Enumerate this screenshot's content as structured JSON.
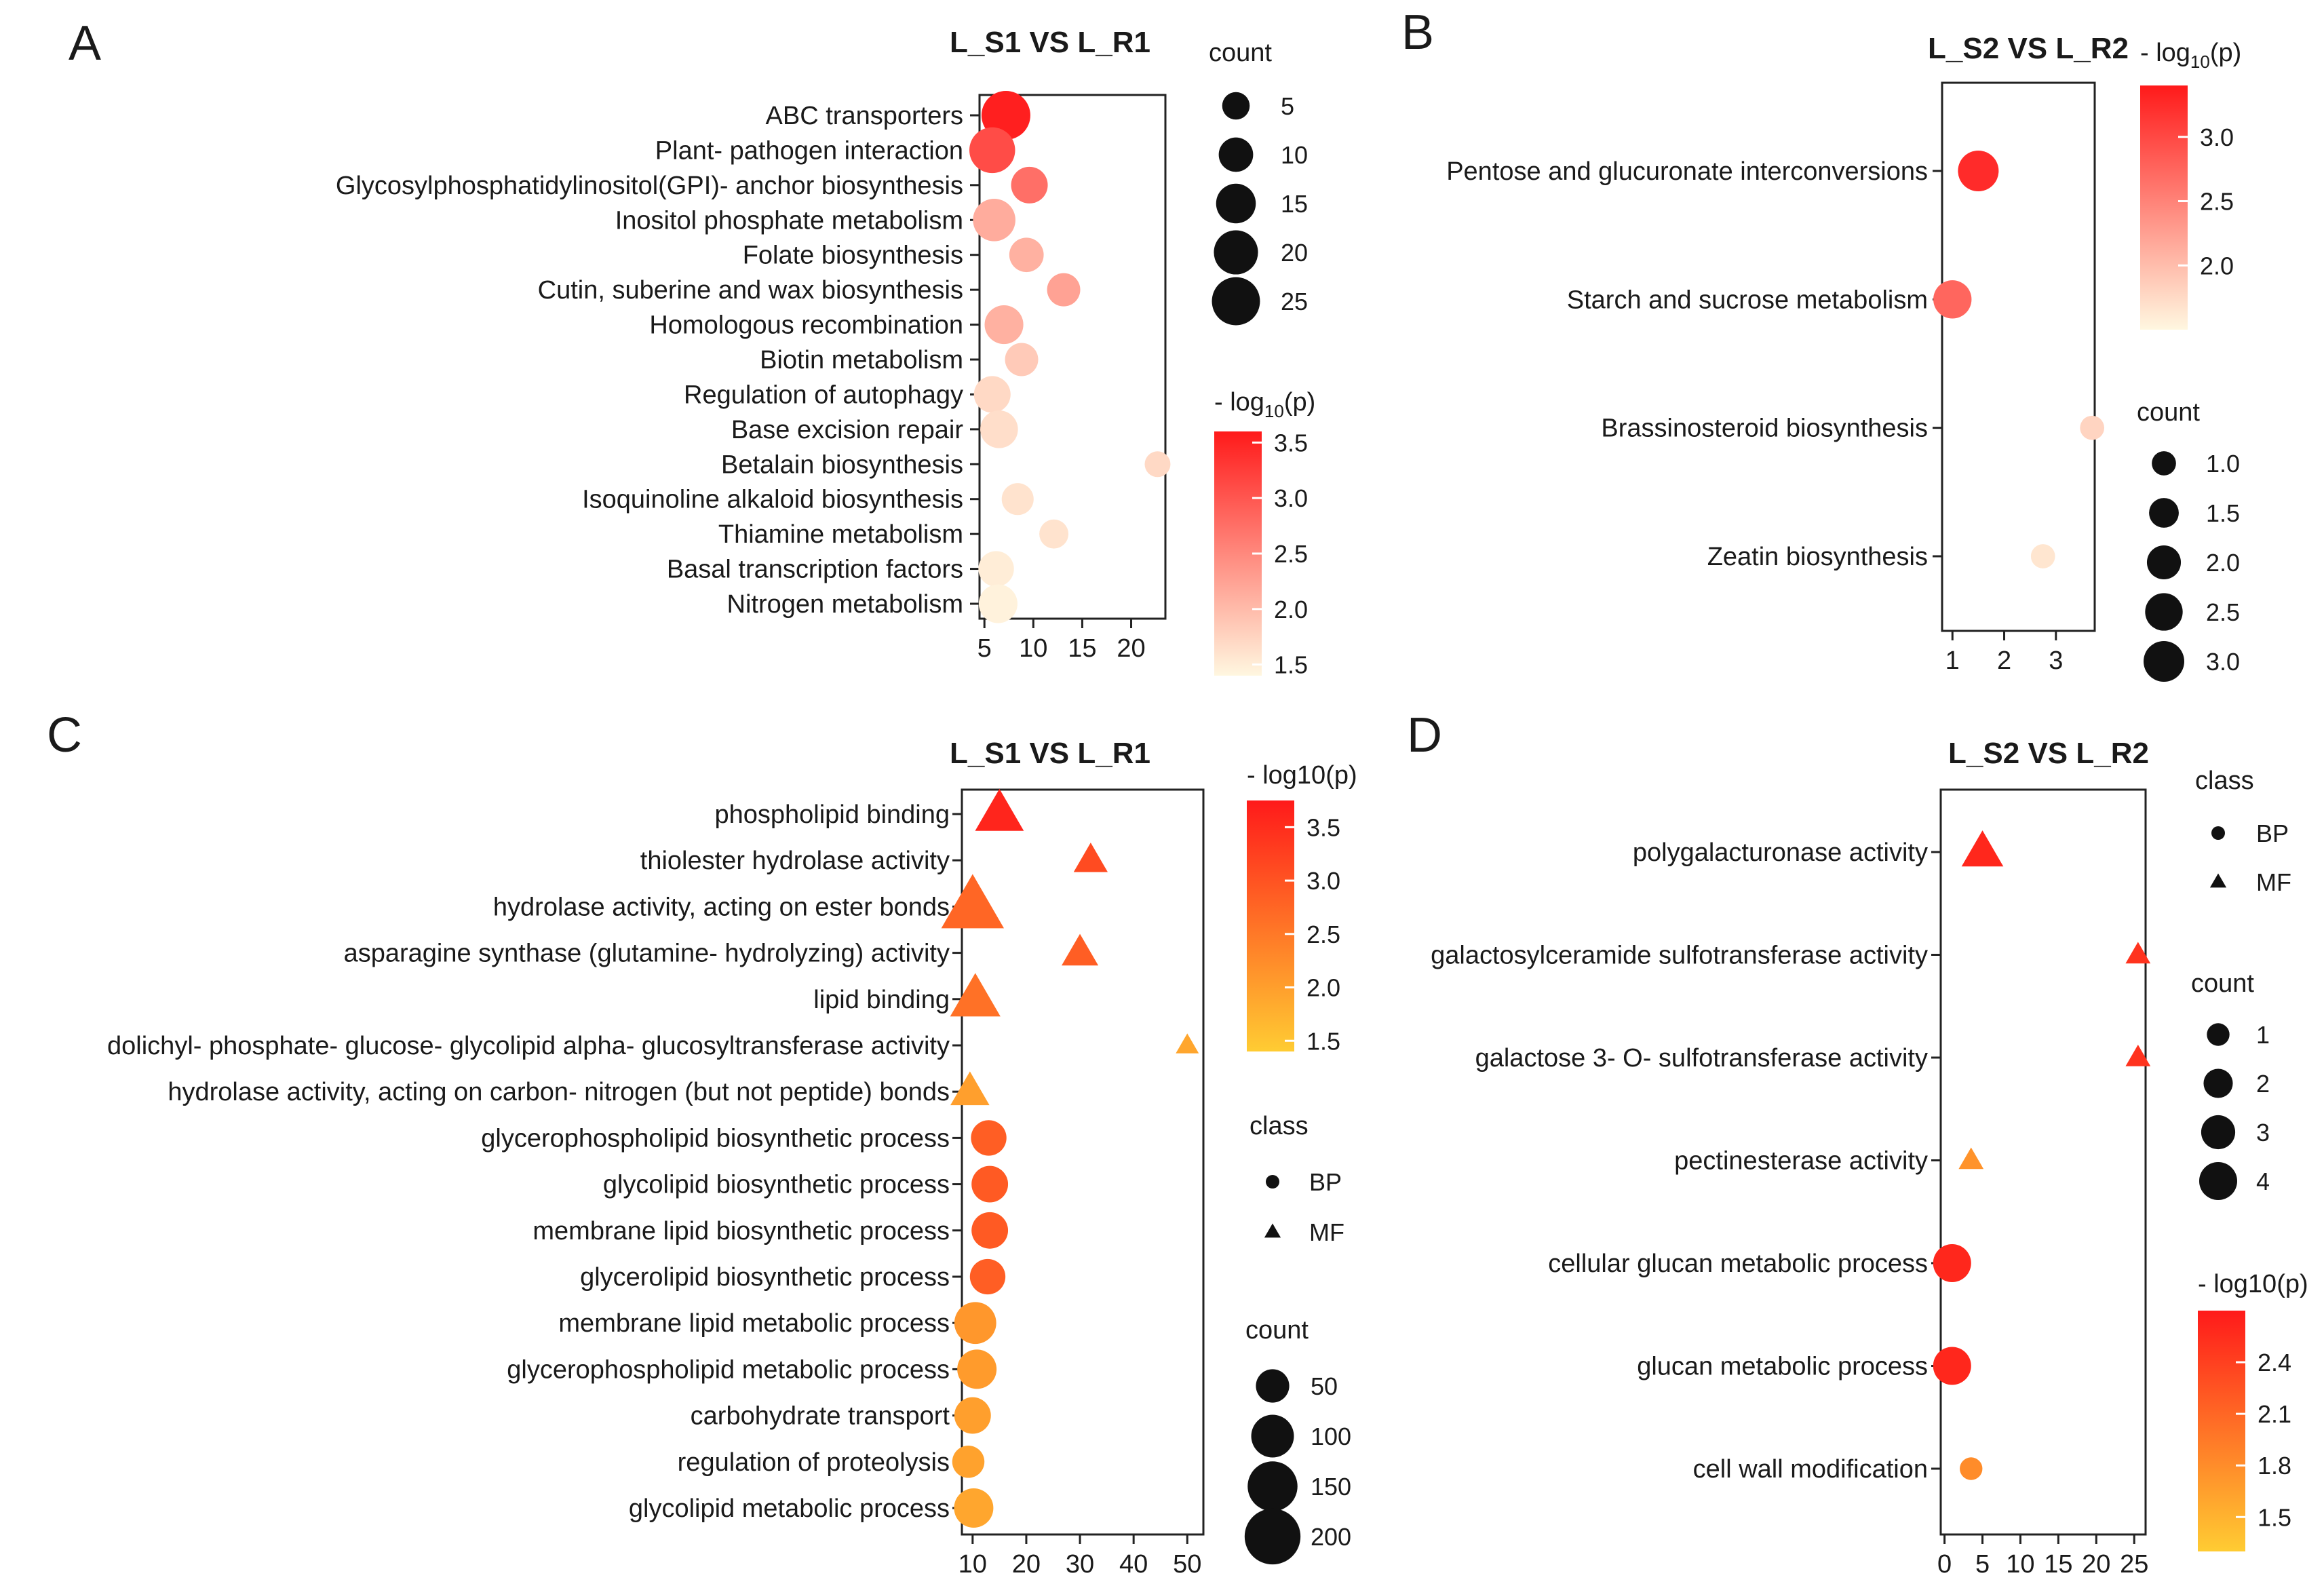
{
  "chart_data": [
    {
      "panel": "A",
      "type": "scatter",
      "title": "L_S1 VS L_R1",
      "xlabel": "",
      "ylabel": "",
      "xlim": [
        4.5,
        23.5
      ],
      "xticks": [
        5,
        10,
        15,
        20
      ],
      "categories": [
        "ABC transporters",
        "Plant- pathogen interaction",
        "Glycosylphosphatidylinositol(GPI)- anchor biosynthesis",
        "Inositol phosphate metabolism",
        "Folate biosynthesis",
        "Cutin, suberine and wax biosynthesis",
        "Homologous recombination",
        "Biotin metabolism",
        "Regulation of autophagy",
        "Base excision repair",
        "Betalain biosynthesis",
        "Isoquinoline alkaloid biosynthesis",
        "Thiamine metabolism",
        "Basal transcription factors",
        "Nitrogen metabolism"
      ],
      "x": [
        7.2,
        5.8,
        9.6,
        6.0,
        9.3,
        13.1,
        7.0,
        8.8,
        5.8,
        6.5,
        22.7,
        8.4,
        12.1,
        6.2,
        6.4
      ],
      "count": [
        26,
        22,
        12,
        18,
        10,
        9,
        14,
        9,
        12,
        13,
        4,
        8,
        6,
        11,
        14
      ],
      "neglog10p": [
        3.55,
        3.1,
        2.75,
        2.15,
        2.1,
        2.25,
        2.1,
        1.85,
        1.7,
        1.65,
        1.7,
        1.6,
        1.6,
        1.5,
        1.45
      ],
      "marker": "circle",
      "color_legend": {
        "title_prefix": "- log",
        "title_sub": "10",
        "title_suffix": "(p)",
        "range": [
          1.4,
          3.6
        ],
        "ticks": [
          "3.5",
          "3.0",
          "2.5",
          "2.0",
          "1.5"
        ],
        "low": "#fff7e0",
        "high": "#ff1a1a"
      },
      "size_legend": {
        "title": "count",
        "values": [
          5,
          10,
          15,
          20,
          25
        ]
      },
      "legend_position": "right"
    },
    {
      "panel": "B",
      "type": "scatter",
      "title": "L_S2 VS L_R2",
      "xlim": [
        0.8,
        3.75
      ],
      "xticks": [
        1,
        2,
        3
      ],
      "categories": [
        "Pentose and glucuronate interconversions",
        "Starch and sucrose metabolism",
        "Brassinosteroid biosynthesis",
        "Zeatin biosynthesis"
      ],
      "x": [
        1.5,
        1.0,
        3.7,
        2.75
      ],
      "count": [
        3,
        2.6,
        1,
        1
      ],
      "neglog10p": [
        3.25,
        2.75,
        1.8,
        1.65
      ],
      "marker": "circle",
      "color_legend": {
        "title_prefix": "- log",
        "title_sub": "10",
        "title_suffix": "(p)",
        "range": [
          1.5,
          3.4
        ],
        "ticks": [
          "3.0",
          "2.5",
          "2.0"
        ],
        "low": "#fff7e0",
        "high": "#ff1a1a"
      },
      "size_legend": {
        "title": "count",
        "values": [
          1.0,
          1.5,
          2.0,
          2.5,
          3.0
        ],
        "labels": [
          "1.0",
          "1.5",
          "2.0",
          "2.5",
          "3.0"
        ]
      },
      "legend_position": "right"
    },
    {
      "panel": "C",
      "type": "scatter",
      "title": "L_S1 VS L_R1",
      "xlim": [
        8,
        53
      ],
      "xticks": [
        10,
        20,
        30,
        40,
        50
      ],
      "categories": [
        "phospholipid binding",
        "thiolester hydrolase activity",
        "hydrolase activity, acting on ester bonds",
        "asparagine synthase (glutamine- hydrolyzing) activity",
        "lipid binding",
        "dolichyl- phosphate- glucose- glycolipid alpha- glucosyltransferase activity",
        "hydrolase activity, acting on carbon- nitrogen (but not peptide) bonds",
        "glycerophospholipid biosynthetic process",
        "glycolipid biosynthetic process",
        "membrane lipid biosynthetic process",
        "glycerolipid biosynthetic process",
        "membrane lipid metabolic process",
        "glycerophospholipid metabolic process",
        "carbohydrate transport",
        "regulation of proteolysis",
        "glycolipid metabolic process"
      ],
      "x": [
        15,
        32,
        10,
        30,
        10.5,
        50,
        9.5,
        13,
        13.2,
        13.2,
        12.8,
        10.5,
        10.8,
        10,
        9.2,
        10.2
      ],
      "count": [
        110,
        40,
        210,
        50,
        120,
        10,
        60,
        60,
        65,
        65,
        60,
        95,
        80,
        65,
        45,
        80
      ],
      "neglog10p": [
        3.6,
        3.1,
        2.75,
        2.85,
        2.6,
        1.9,
        2.0,
        2.85,
        2.9,
        2.9,
        2.85,
        2.1,
        2.05,
        2.0,
        1.95,
        1.9
      ],
      "class": [
        "MF",
        "MF",
        "MF",
        "MF",
        "MF",
        "MF",
        "MF",
        "BP",
        "BP",
        "BP",
        "BP",
        "BP",
        "BP",
        "BP",
        "BP",
        "BP"
      ],
      "color_legend": {
        "title": "- log10(p)",
        "range": [
          1.4,
          3.75
        ],
        "ticks": [
          "3.5",
          "3.0",
          "2.5",
          "2.0",
          "1.5"
        ],
        "low": "#ffcc33",
        "high": "#ff1a1a"
      },
      "class_legend": {
        "title": "class",
        "items": [
          "BP",
          "MF"
        ]
      },
      "size_legend": {
        "title": "count",
        "values": [
          50,
          100,
          150,
          200
        ]
      },
      "legend_position": "right"
    },
    {
      "panel": "D",
      "type": "scatter",
      "title": "L_S2 VS L_R2",
      "xlim": [
        -0.5,
        26.5
      ],
      "xticks": [
        0,
        5,
        10,
        15,
        20,
        25
      ],
      "categories": [
        "polygalacturonase activity",
        "galactosylceramide sulfotransferase activity",
        "galactose 3- O- sulfotransferase activity",
        "pectinesterase activity",
        "cellular glucan metabolic process",
        "glucan metabolic process",
        "cell wall modification"
      ],
      "x": [
        5,
        25.5,
        25.5,
        3.5,
        1,
        1,
        3.5
      ],
      "count": [
        4,
        1,
        1,
        1,
        4,
        4,
        1
      ],
      "neglog10p": [
        2.6,
        2.5,
        2.5,
        1.75,
        2.6,
        2.6,
        1.8
      ],
      "class": [
        "MF",
        "MF",
        "MF",
        "MF",
        "BP",
        "BP",
        "BP"
      ],
      "class_legend": {
        "title": "class",
        "items": [
          "BP",
          "MF"
        ]
      },
      "size_legend": {
        "title": "count",
        "values": [
          1,
          2,
          3,
          4
        ]
      },
      "color_legend": {
        "title": "- log10(p)",
        "range": [
          1.3,
          2.7
        ],
        "ticks": [
          "2.4",
          "2.1",
          "1.8",
          "1.5"
        ],
        "low": "#ffcc33",
        "high": "#ff1a1a"
      },
      "legend_position": "right"
    }
  ]
}
